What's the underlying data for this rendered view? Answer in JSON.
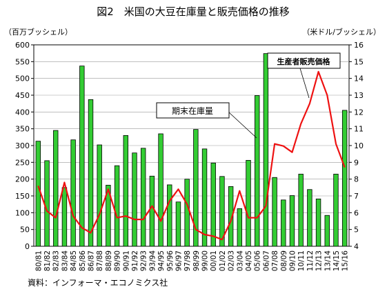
{
  "chart_data": {
    "type": "bar+line",
    "title": "図2　米国の大豆在庫量と販売価格の推移",
    "y_left_label": "（百万ブッシェル）",
    "y_right_label": "（米ドル/ブッシェル）",
    "source": "資料：インフォーマ・エコノミクス社",
    "categories": [
      "80/81",
      "81/82",
      "82/83",
      "83/84",
      "84/85",
      "85/86",
      "86/87",
      "87/88",
      "88/89",
      "89/90",
      "90/91",
      "91/92",
      "92/93",
      "93/94",
      "94/95",
      "95/96",
      "96/97",
      "97/98",
      "98/99",
      "99/00",
      "00/01",
      "01/02",
      "02/03",
      "03/04",
      "04/05",
      "05/06",
      "06/07",
      "07/08",
      "08/09",
      "09/10",
      "10/11",
      "11/12",
      "12/13",
      "13/14",
      "14/15",
      "15/16"
    ],
    "ylim_left": [
      0,
      600
    ],
    "yticks_left": [
      0,
      50,
      100,
      150,
      200,
      250,
      300,
      350,
      400,
      450,
      500,
      550,
      600
    ],
    "ylim_right": [
      4,
      16
    ],
    "yticks_right": [
      4,
      5,
      6,
      7,
      8,
      9,
      10,
      11,
      12,
      13,
      14,
      15,
      16
    ],
    "series": [
      {
        "name": "期末在庫量",
        "type": "bar",
        "axis": "left",
        "color": "#33cc33",
        "values": [
          313,
          255,
          345,
          175,
          317,
          537,
          437,
          302,
          182,
          240,
          330,
          278,
          292,
          209,
          335,
          183,
          132,
          200,
          348,
          290,
          248,
          208,
          178,
          112,
          256,
          449,
          574,
          205,
          138,
          151,
          215,
          169,
          141,
          92,
          215,
          405
        ]
      },
      {
        "name": "生産者販売価格",
        "type": "line",
        "axis": "right",
        "color": "#ee1111",
        "values": [
          7.6,
          6.1,
          5.7,
          7.8,
          5.8,
          5.1,
          4.8,
          5.9,
          7.4,
          5.7,
          5.8,
          5.6,
          5.6,
          6.4,
          5.5,
          6.7,
          7.4,
          6.5,
          5.0,
          4.7,
          4.6,
          4.4,
          5.5,
          7.3,
          5.7,
          5.7,
          6.4,
          10.1,
          9.97,
          9.6,
          11.3,
          12.5,
          14.4,
          13.0,
          10.1,
          8.7
        ]
      }
    ],
    "annotations": [
      {
        "text": "期末在庫量",
        "target": "bar"
      },
      {
        "text": "生産者販売価格",
        "target": "line"
      }
    ],
    "grid": "horizontal",
    "colors": {
      "bar": "#33cc33",
      "bar_edge": "#000000",
      "line": "#ee1111",
      "grid": "#999999"
    }
  }
}
